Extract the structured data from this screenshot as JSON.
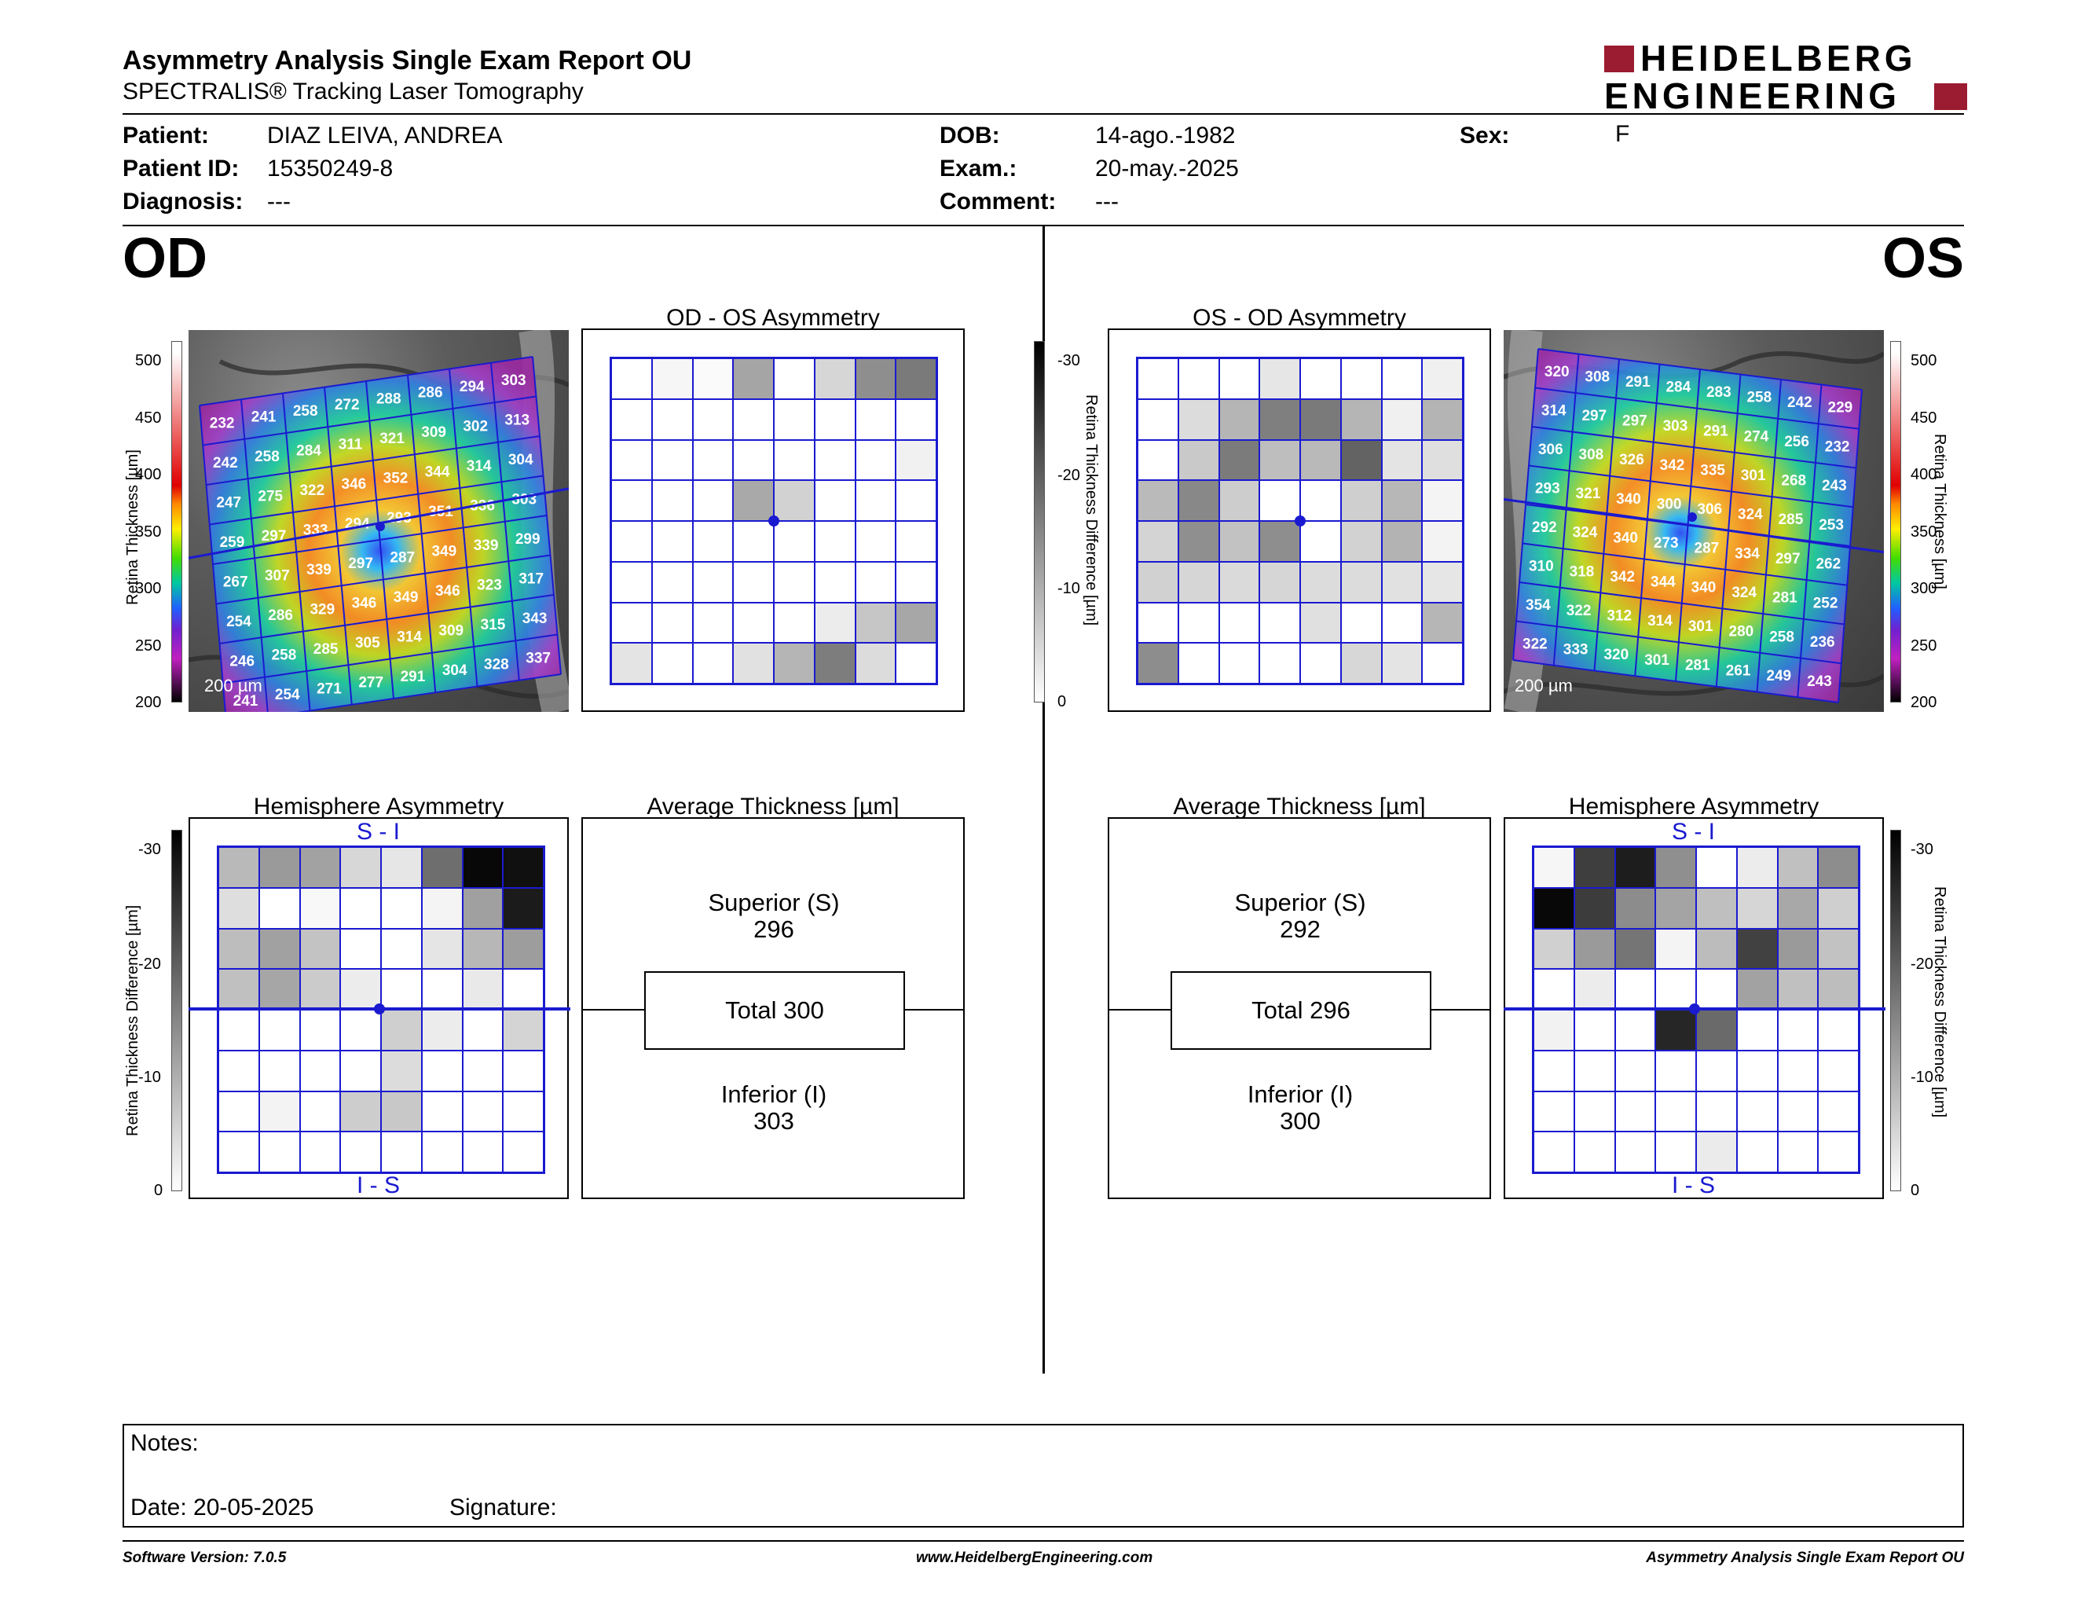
{
  "header": {
    "title": "Asymmetry Analysis Single Exam Report OU",
    "subtitle": "SPECTRALIS® Tracking Laser Tomography",
    "logo_line1": "HEIDELBERG",
    "logo_line2": "ENGINEERING"
  },
  "patient": {
    "patient_label": "Patient:",
    "patient_value": "DIAZ LEIVA, ANDREA",
    "id_label": "Patient ID:",
    "id_value": "15350249-8",
    "diagnosis_label": "Diagnosis:",
    "diagnosis_value": "---",
    "dob_label": "DOB:",
    "dob_value": "14-ago.-1982",
    "exam_label": "Exam.:",
    "exam_value": "20-may.-2025",
    "comment_label": "Comment:",
    "comment_value": "---",
    "sex_label": "Sex:",
    "sex_value": "F"
  },
  "od": {
    "eye": "OD",
    "asym_title": "OD - OS Asymmetry",
    "hemi_title": "Hemisphere Asymmetry",
    "avg_title": "Average Thickness [µm]",
    "superior_label": "Superior (S)",
    "superior_value": "296",
    "total": "Total 300",
    "inferior_label": "Inferior (I)",
    "inferior_value": "303",
    "scale": "200 µm",
    "thickness_grid": [
      [
        232,
        241,
        258,
        272,
        288,
        286,
        294,
        303
      ],
      [
        242,
        258,
        284,
        311,
        321,
        309,
        302,
        313
      ],
      [
        247,
        275,
        322,
        346,
        352,
        344,
        314,
        304
      ],
      [
        259,
        297,
        333,
        294,
        293,
        351,
        336,
        303
      ],
      [
        267,
        307,
        339,
        297,
        287,
        349,
        339,
        299
      ],
      [
        254,
        286,
        329,
        346,
        349,
        346,
        323,
        317
      ],
      [
        246,
        258,
        285,
        305,
        314,
        309,
        315,
        343
      ],
      [
        241,
        254,
        271,
        277,
        291,
        304,
        328,
        337
      ]
    ],
    "asym_grid": [
      [
        "#fff",
        "#f6f6f6",
        "#fafafa",
        "#a5a5a5",
        "#fff",
        "#d6d6d6",
        "#8e8e8e",
        "#7a7a7a"
      ],
      [
        "#fff",
        "#fff",
        "#fff",
        "#fff",
        "#fff",
        "#fff",
        "#fff",
        "#fff"
      ],
      [
        "#fff",
        "#fff",
        "#fff",
        "#fff",
        "#fff",
        "#fff",
        "#fff",
        "#f1f1f1"
      ],
      [
        "#fff",
        "#fff",
        "#fff",
        "#a9a9a9",
        "#d2d2d2",
        "#fff",
        "#fff",
        "#fff"
      ],
      [
        "#fff",
        "#fff",
        "#fff",
        "#fff",
        "#fff",
        "#fff",
        "#fff",
        "#fff"
      ],
      [
        "#fff",
        "#fff",
        "#fff",
        "#fff",
        "#fff",
        "#fff",
        "#fff",
        "#fff"
      ],
      [
        "#fff",
        "#fff",
        "#fff",
        "#fff",
        "#fff",
        "#ececec",
        "#c6c6c6",
        "#a7a7a7"
      ],
      [
        "#e4e4e4",
        "#fff",
        "#fff",
        "#e1e1e1",
        "#b5b5b5",
        "#7d7d7d",
        "#dcdcdc",
        "#fff"
      ]
    ],
    "hemi_grid": [
      [
        "#b9b9b9",
        "#9a9a9a",
        "#a2a2a2",
        "#d7d7d7",
        "#e6e6e6",
        "#6e6e6e",
        "#080808",
        "#101010"
      ],
      [
        "#dedede",
        "#fff",
        "#f8f8f8",
        "#fff",
        "#fff",
        "#f4f4f4",
        "#a0a0a0",
        "#1b1b1b"
      ],
      [
        "#bdbdbd",
        "#a1a1a1",
        "#c3c3c3",
        "#fff",
        "#fff",
        "#e5e5e5",
        "#b7b7b7",
        "#9d9d9d"
      ],
      [
        "#c0c0c0",
        "#a6a6a6",
        "#cbcbcb",
        "#ececec",
        "#fff",
        "#fff",
        "#e9e9e9",
        "#fff"
      ],
      [
        "#fff",
        "#fff",
        "#fff",
        "#fff",
        "#cfcfcf",
        "#ececec",
        "#fff",
        "#d4d4d4"
      ],
      [
        "#fff",
        "#fff",
        "#fff",
        "#fff",
        "#dcdcdc",
        "#fff",
        "#fff",
        "#fff"
      ],
      [
        "#fff",
        "#f3f3f3",
        "#fff",
        "#cdcdcd",
        "#c8c8c8",
        "#fff",
        "#fff",
        "#fff"
      ],
      [
        "#fff",
        "#fff",
        "#fff",
        "#fff",
        "#fff",
        "#fff",
        "#fff",
        "#fff"
      ]
    ]
  },
  "os": {
    "eye": "OS",
    "asym_title": "OS - OD Asymmetry",
    "hemi_title": "Hemisphere Asymmetry",
    "avg_title": "Average Thickness [µm]",
    "superior_label": "Superior (S)",
    "superior_value": "292",
    "total": "Total 296",
    "inferior_label": "Inferior (I)",
    "inferior_value": "300",
    "scale": "200 µm",
    "thickness_grid": [
      [
        320,
        308,
        291,
        284,
        283,
        258,
        242,
        229
      ],
      [
        314,
        297,
        297,
        303,
        291,
        274,
        256,
        232
      ],
      [
        306,
        308,
        326,
        342,
        335,
        301,
        268,
        243
      ],
      [
        293,
        321,
        340,
        300,
        306,
        324,
        285,
        253
      ],
      [
        292,
        324,
        340,
        273,
        287,
        334,
        297,
        262
      ],
      [
        310,
        318,
        342,
        344,
        340,
        324,
        281,
        252
      ],
      [
        354,
        322,
        312,
        314,
        301,
        280,
        258,
        236
      ],
      [
        322,
        333,
        320,
        301,
        281,
        261,
        249,
        243
      ]
    ],
    "asym_grid": [
      [
        "#fff",
        "#fff",
        "#fff",
        "#e6e6e6",
        "#fff",
        "#fff",
        "#fff",
        "#f0f0f0"
      ],
      [
        "#fff",
        "#dcdcdc",
        "#b5b5b5",
        "#7f7f7f",
        "#7a7a7a",
        "#b5b5b5",
        "#f0f0f0",
        "#b4b4b4"
      ],
      [
        "#fff",
        "#c9c9c9",
        "#7b7b7b",
        "#bebebe",
        "#b9b9b9",
        "#636363",
        "#e4e4e4",
        "#dfdfdf"
      ],
      [
        "#bababa",
        "#888888",
        "#cdcdcd",
        "#fff",
        "#fff",
        "#cfcfcf",
        "#b7b7b7",
        "#f4f4f4"
      ],
      [
        "#d4d4d4",
        "#8f8f8f",
        "#c2c2c2",
        "#8e8e8e",
        "#fff",
        "#d2d2d2",
        "#b3b3b3",
        "#f3f3f3"
      ],
      [
        "#d1d1d1",
        "#d6d6d6",
        "#dadada",
        "#d6d6d6",
        "#dcdcdc",
        "#dcdcdc",
        "#e1e1e1",
        "#e6e6e6"
      ],
      [
        "#fff",
        "#fff",
        "#fff",
        "#fff",
        "#e0e0e0",
        "#fff",
        "#fff",
        "#b6b6b6"
      ],
      [
        "#8d8d8d",
        "#fff",
        "#fff",
        "#fff",
        "#fff",
        "#d7d7d7",
        "#e4e4e4",
        "#fff"
      ]
    ],
    "hemi_grid": [
      [
        "#f6f6f6",
        "#3e3e3e",
        "#1d1d1d",
        "#8f8f8f",
        "#fff",
        "#ececec",
        "#c0c0c0",
        "#8d8d8d"
      ],
      [
        "#080808",
        "#3c3c3c",
        "#8c8c8c",
        "#a4a4a4",
        "#bfbfbf",
        "#d6d6d6",
        "#a8a8a8",
        "#cfcfcf"
      ],
      [
        "#d0d0d0",
        "#9a9a9a",
        "#757575",
        "#f4f4f4",
        "#bcbcbc",
        "#414141",
        "#9a9a9a",
        "#c2c2c2"
      ],
      [
        "#fff",
        "#ececec",
        "#fff",
        "#fff",
        "#fff",
        "#a2a2a2",
        "#c0c0c0",
        "#bdbdbd"
      ],
      [
        "#f2f2f2",
        "#fff",
        "#fff",
        "#262626",
        "#6a6a6a",
        "#fff",
        "#fff",
        "#fff"
      ],
      [
        "#fff",
        "#fff",
        "#fff",
        "#fff",
        "#fff",
        "#fff",
        "#fff",
        "#fff"
      ],
      [
        "#fff",
        "#fff",
        "#fff",
        "#fff",
        "#fff",
        "#fff",
        "#fff",
        "#fff"
      ],
      [
        "#fff",
        "#fff",
        "#fff",
        "#fff",
        "#ebebeb",
        "#fff",
        "#fff",
        "#fff"
      ]
    ]
  },
  "bars": {
    "thickness_label": "Retina  Thickness [µm]",
    "thickness_ticks": [
      "500",
      "450",
      "400",
      "350",
      "300",
      "250",
      "200"
    ],
    "diff_label": "Retina Thickness Difference [µm]",
    "diff_ticks": [
      "-30",
      "-20",
      "-10",
      "0"
    ],
    "si": "S - I",
    "is": "I - S"
  },
  "notes": {
    "notes_label": "Notes:",
    "date_label": "Date: 20-05-2025",
    "signature_label": "Signature:"
  },
  "footer": {
    "version": "Software Version: 7.0.5",
    "url": "www.HeidelbergEngineering.com",
    "report": "Asymmetry Analysis Single Exam Report OU"
  },
  "colors": {
    "grid_blue": "#1a1ad0",
    "logo_red": "#9b1b30"
  }
}
